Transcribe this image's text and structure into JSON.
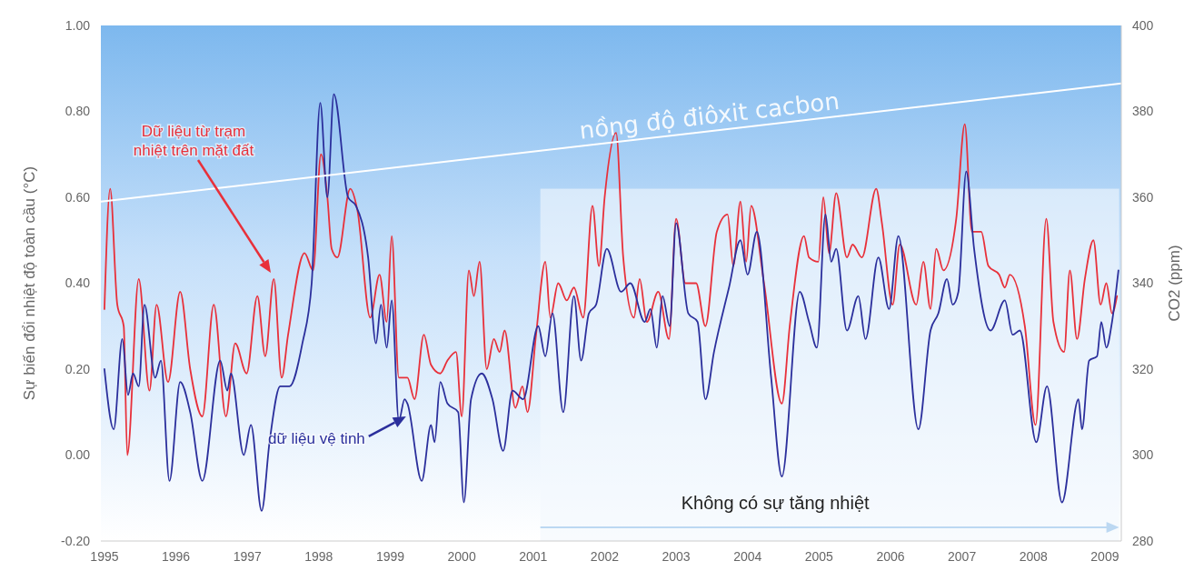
{
  "chart_data": {
    "type": "line",
    "ylabel": "Sự biến đổi nhiệt độ toàn cầu (°C)",
    "y2label": "CO2 (ppm)",
    "xlim": [
      1994.95,
      2009.23
    ],
    "xticks": [
      1995,
      1996,
      1997,
      1998,
      1999,
      2000,
      2001,
      2002,
      2003,
      2004,
      2005,
      2006,
      2007,
      2008,
      2009
    ],
    "ylim": [
      -0.2,
      1
    ],
    "yticks": [
      {
        "value": -0.2,
        "label": "-0.20"
      },
      {
        "value": 0,
        "label": "0.00"
      },
      {
        "value": 0.2,
        "label": "0.20"
      },
      {
        "value": 0.4,
        "label": "0.40"
      },
      {
        "value": 0.6,
        "label": "0.60"
      },
      {
        "value": 0.8,
        "label": "0.80"
      },
      {
        "value": 1,
        "label": "1.00"
      }
    ],
    "y2lim": [
      280,
      400
    ],
    "y2ticks": [
      280,
      300,
      320,
      340,
      360,
      380,
      400
    ],
    "grid": false,
    "marker": "none",
    "line_style": "solid",
    "series": [
      {
        "color": "#e8303a",
        "x": [
          1995.0,
          1995.08,
          1995.18,
          1995.27,
          1995.32,
          1995.48,
          1995.63,
          1995.73,
          1995.89,
          1996.06,
          1996.2,
          1996.37,
          1996.53,
          1996.7,
          1996.83,
          1996.99,
          1997.14,
          1997.25,
          1997.37,
          1997.48,
          1997.57,
          1997.8,
          1997.92,
          1998.03,
          1998.12,
          1998.18,
          1998.26,
          1998.44,
          1998.54,
          1998.72,
          1998.85,
          1998.95,
          1999.02,
          1999.12,
          1999.24,
          1999.34,
          1999.47,
          1999.57,
          1999.7,
          1999.8,
          1999.92,
          2000.0,
          2000.1,
          2000.17,
          2000.25,
          2000.35,
          2000.45,
          2000.53,
          2000.6,
          2000.75,
          2000.85,
          2000.92,
          2001.04,
          2001.17,
          2001.24,
          2001.35,
          2001.47,
          2001.57,
          2001.7,
          2001.83,
          2001.92,
          2002.0,
          2002.16,
          2002.26,
          2002.41,
          2002.49,
          2002.59,
          2002.75,
          2002.9,
          2003.0,
          2003.13,
          2003.28,
          2003.41,
          2003.57,
          2003.72,
          2003.8,
          2003.9,
          2003.98,
          2004.05,
          2004.23,
          2004.48,
          2004.59,
          2004.79,
          2004.86,
          2004.99,
          2005.06,
          2005.14,
          2005.24,
          2005.39,
          2005.47,
          2005.6,
          2005.8,
          2005.88,
          2006.03,
          2006.13,
          2006.36,
          2006.46,
          2006.56,
          2006.64,
          2006.74,
          2006.92,
          2007.04,
          2007.14,
          2007.27,
          2007.37,
          2007.52,
          2007.6,
          2007.67,
          2007.88,
          2008.03,
          2008.18,
          2008.28,
          2008.43,
          2008.51,
          2008.61,
          2008.72,
          2008.84,
          2008.94,
          2009.02,
          2009.1,
          2009.17
        ],
        "values": [
          0.34,
          0.62,
          0.35,
          0.3,
          0.0,
          0.41,
          0.15,
          0.35,
          0.17,
          0.38,
          0.2,
          0.09,
          0.35,
          0.09,
          0.26,
          0.19,
          0.37,
          0.23,
          0.41,
          0.18,
          0.28,
          0.47,
          0.43,
          0.7,
          0.6,
          0.48,
          0.46,
          0.62,
          0.57,
          0.32,
          0.42,
          0.31,
          0.51,
          0.18,
          0.18,
          0.13,
          0.28,
          0.21,
          0.19,
          0.22,
          0.24,
          0.09,
          0.43,
          0.37,
          0.45,
          0.2,
          0.27,
          0.24,
          0.29,
          0.11,
          0.16,
          0.1,
          0.28,
          0.45,
          0.32,
          0.4,
          0.36,
          0.39,
          0.32,
          0.58,
          0.44,
          0.6,
          0.75,
          0.46,
          0.32,
          0.41,
          0.31,
          0.38,
          0.27,
          0.55,
          0.4,
          0.4,
          0.3,
          0.52,
          0.56,
          0.44,
          0.59,
          0.45,
          0.58,
          0.4,
          0.12,
          0.3,
          0.51,
          0.46,
          0.45,
          0.6,
          0.47,
          0.61,
          0.46,
          0.49,
          0.46,
          0.62,
          0.54,
          0.35,
          0.49,
          0.35,
          0.45,
          0.34,
          0.48,
          0.43,
          0.55,
          0.77,
          0.52,
          0.52,
          0.44,
          0.42,
          0.39,
          0.42,
          0.3,
          0.07,
          0.55,
          0.31,
          0.24,
          0.43,
          0.27,
          0.41,
          0.5,
          0.35,
          0.4,
          0.33,
          0.37
        ]
      },
      {
        "color": "#2b2f9c",
        "x": [
          1995.0,
          1995.13,
          1995.25,
          1995.33,
          1995.4,
          1995.48,
          1995.56,
          1995.71,
          1995.79,
          1995.91,
          1996.06,
          1996.2,
          1996.37,
          1996.62,
          1996.72,
          1996.77,
          1996.95,
          1997.05,
          1997.2,
          1997.31,
          1997.46,
          1997.59,
          1997.77,
          1997.9,
          1998.02,
          1998.12,
          1998.21,
          1998.41,
          1998.52,
          1998.69,
          1998.8,
          1998.87,
          1998.95,
          1999.02,
          1999.12,
          1999.2,
          1999.24,
          1999.44,
          1999.57,
          1999.62,
          1999.7,
          1999.8,
          1999.95,
          2000.03,
          2000.13,
          2000.28,
          2000.43,
          2000.58,
          2000.71,
          2000.86,
          2001.07,
          2001.17,
          2001.27,
          2001.42,
          2001.57,
          2001.67,
          2001.78,
          2001.88,
          2002.03,
          2002.23,
          2002.36,
          2002.56,
          2002.64,
          2002.73,
          2002.81,
          2002.91,
          2003.0,
          2003.17,
          2003.3,
          2003.41,
          2003.53,
          2003.74,
          2003.9,
          2004.0,
          2004.13,
          2004.33,
          2004.48,
          2004.73,
          2004.86,
          2004.97,
          2005.09,
          2005.17,
          2005.24,
          2005.39,
          2005.55,
          2005.65,
          2005.83,
          2005.98,
          2006.11,
          2006.39,
          2006.56,
          2006.67,
          2006.79,
          2006.87,
          2006.95,
          2007.06,
          2007.17,
          2007.4,
          2007.6,
          2007.71,
          2007.81,
          2008.04,
          2008.19,
          2008.4,
          2008.63,
          2008.68,
          2008.78,
          2008.89,
          2008.95,
          2009.02,
          2009.1,
          2009.19
        ],
        "values": [
          0.2,
          0.06,
          0.27,
          0.14,
          0.19,
          0.16,
          0.35,
          0.18,
          0.22,
          -0.06,
          0.17,
          0.1,
          -0.06,
          0.22,
          0.15,
          0.19,
          0.0,
          0.07,
          -0.13,
          0.03,
          0.16,
          0.16,
          0.26,
          0.4,
          0.82,
          0.6,
          0.84,
          0.6,
          0.58,
          0.46,
          0.26,
          0.35,
          0.25,
          0.36,
          0.08,
          0.13,
          0.12,
          -0.06,
          0.07,
          0.03,
          0.17,
          0.12,
          0.1,
          -0.11,
          0.13,
          0.19,
          0.13,
          0.01,
          0.15,
          0.13,
          0.3,
          0.23,
          0.33,
          0.1,
          0.37,
          0.22,
          0.33,
          0.35,
          0.48,
          0.38,
          0.4,
          0.31,
          0.34,
          0.25,
          0.37,
          0.3,
          0.54,
          0.33,
          0.31,
          0.13,
          0.24,
          0.39,
          0.5,
          0.42,
          0.52,
          0.18,
          -0.05,
          0.38,
          0.31,
          0.25,
          0.56,
          0.45,
          0.48,
          0.29,
          0.37,
          0.27,
          0.46,
          0.34,
          0.51,
          0.06,
          0.29,
          0.33,
          0.41,
          0.35,
          0.38,
          0.66,
          0.48,
          0.29,
          0.36,
          0.28,
          0.29,
          0.03,
          0.16,
          -0.11,
          0.13,
          0.06,
          0.22,
          0.23,
          0.31,
          0.25,
          0.31,
          0.43
        ]
      },
      {
        "name": "nồng độ điôxit cacbon",
        "color": "#ffffff",
        "axis": "y2",
        "x": [
          1994.95,
          2009.23
        ],
        "values": [
          359,
          386.5
        ]
      }
    ],
    "bands": [
      {
        "axis": "x",
        "from": 2001.1,
        "to": 2009.2,
        "label": "Không có sự tăng nhiệt",
        "color": "#f4f8fe"
      }
    ],
    "annotations": [
      "Dữ liệu từ trạm\nnhiệt trên mặt đất",
      {
        "text": "dữ liệu vệ tinh",
        "x": 1999.22,
        "y": 0.09
      }
    ]
  }
}
